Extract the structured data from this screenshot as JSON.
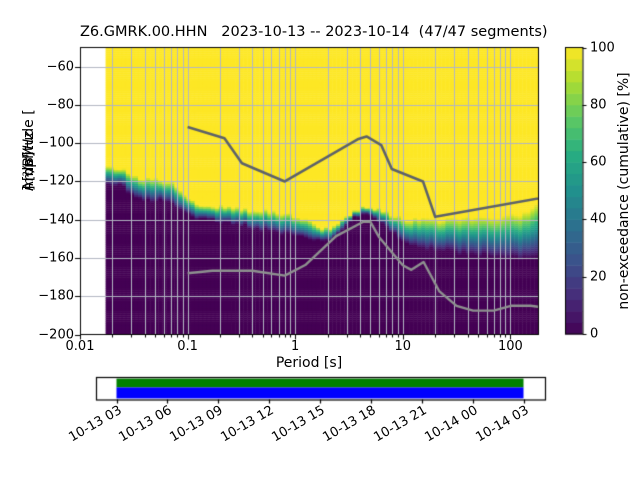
{
  "title": "Z6.GMRK.00.HHN   2023-10-13 -- 2023-10-14  (47/47 segments)",
  "axes": {
    "xlabel": "Period [s]",
    "ylabel_prefix": "Amplitude [",
    "ylabel_math": "m²/s⁴/Hz",
    "ylabel_suffix": "] [dB]",
    "x_ticks": [
      {
        "label": "0.01",
        "value": 0.01
      },
      {
        "label": "0.1",
        "value": 0.1
      },
      {
        "label": "1",
        "value": 1
      },
      {
        "label": "10",
        "value": 10
      },
      {
        "label": "100",
        "value": 100
      }
    ],
    "y_ticks": [
      {
        "label": "−60",
        "value": -60
      },
      {
        "label": "−80",
        "value": -80
      },
      {
        "label": "−100",
        "value": -100
      },
      {
        "label": "−120",
        "value": -120
      },
      {
        "label": "−140",
        "value": -140
      },
      {
        "label": "−160",
        "value": -160
      },
      {
        "label": "−180",
        "value": -180
      },
      {
        "label": "−200",
        "value": -200
      }
    ]
  },
  "colorbar": {
    "label": "non-exceedance (cumulative) [%]",
    "ticks": [
      0,
      20,
      40,
      60,
      80,
      100
    ],
    "steps": 25
  },
  "timeline": {
    "labels": [
      "10-13 03",
      "10-13 06",
      "10-13 09",
      "10-13 12",
      "10-13 15",
      "10-13 18",
      "10-13 21",
      "10-14 00",
      "10-14 03"
    ],
    "green": "#008000",
    "blue": "#0000ff"
  },
  "chart_data": {
    "type": "heatmap",
    "title": "Z6.GMRK.00.HHN   2023-10-13 -- 2023-10-14  (47/47 segments)",
    "xlabel": "Period [s]",
    "ylabel": "Amplitude [m²/s⁴/Hz] [dB]",
    "x_scale": "log",
    "xlim": [
      0.01,
      181
    ],
    "ylim": [
      -200,
      -50
    ],
    "grid": true,
    "colormap": "viridis",
    "colorbar_label": "non-exceedance (cumulative) [%]",
    "colorbar_range": [
      0,
      100
    ],
    "data_period_range": [
      0.0173,
      181
    ],
    "cumulative_band": {
      "comment": "per log10(period): amplitude where non-exceedance reaches ~100% (top) and ~0% (bot)",
      "samples": [
        [
          -1.77,
          -112.5,
          -120.5
        ],
        [
          -1.62,
          -113.5,
          -122.0
        ],
        [
          -1.51,
          -116.5,
          -127.5
        ],
        [
          -1.4,
          -118.5,
          -129.5
        ],
        [
          -1.26,
          -119.0,
          -130.0
        ],
        [
          -1.15,
          -119.5,
          -130.5
        ],
        [
          -1.07,
          -124.0,
          -134.5
        ],
        [
          -0.98,
          -129.0,
          -137.0
        ],
        [
          -0.89,
          -131.5,
          -139.5
        ],
        [
          -0.7,
          -133.0,
          -141.0
        ],
        [
          -0.52,
          -134.0,
          -142.5
        ],
        [
          -0.3,
          -135.0,
          -145.0
        ],
        [
          -0.1,
          -136.5,
          -147.5
        ],
        [
          0.08,
          -138.5,
          -149.5
        ],
        [
          0.23,
          -144.0,
          -151.5
        ],
        [
          0.36,
          -143.5,
          -149.5
        ],
        [
          0.48,
          -138.5,
          -143.0
        ],
        [
          0.57,
          -134.5,
          -138.5
        ],
        [
          0.66,
          -132.5,
          -136.0
        ],
        [
          0.78,
          -134.5,
          -140.5
        ],
        [
          0.88,
          -137.0,
          -146.0
        ],
        [
          1.0,
          -139.5,
          -151.0
        ],
        [
          1.18,
          -140.0,
          -154.5
        ],
        [
          1.45,
          -139.5,
          -157.0
        ],
        [
          1.8,
          -139.0,
          -159.0
        ],
        [
          2.08,
          -137.5,
          -160.0
        ],
        [
          2.2,
          -134.5,
          -160.0
        ],
        [
          2.26,
          -131.5,
          -160.0
        ]
      ]
    },
    "noise_models": {
      "nhnm": [
        [
          0.1,
          -91.5
        ],
        [
          0.22,
          -97.4
        ],
        [
          0.32,
          -110.5
        ],
        [
          0.8,
          -120.0
        ],
        [
          3.8,
          -98.0
        ],
        [
          4.6,
          -96.5
        ],
        [
          6.3,
          -101.0
        ],
        [
          7.9,
          -113.5
        ],
        [
          15.4,
          -120.0
        ],
        [
          20.0,
          -138.5
        ],
        [
          354.8,
          -126.0
        ]
      ],
      "nlnm": [
        [
          0.1,
          -168.0
        ],
        [
          0.17,
          -166.7
        ],
        [
          0.4,
          -166.7
        ],
        [
          0.8,
          -169.2
        ],
        [
          1.24,
          -163.7
        ],
        [
          2.4,
          -148.6
        ],
        [
          4.3,
          -141.1
        ],
        [
          5.0,
          -141.1
        ],
        [
          6.0,
          -149.0
        ],
        [
          10.0,
          -163.8
        ],
        [
          12.0,
          -166.2
        ],
        [
          15.6,
          -162.1
        ],
        [
          21.9,
          -177.5
        ],
        [
          31.6,
          -185.0
        ],
        [
          45.0,
          -187.5
        ],
        [
          70.0,
          -187.5
        ],
        [
          101.0,
          -185.0
        ],
        [
          154.0,
          -185.0
        ],
        [
          328.0,
          -187.5
        ]
      ],
      "nhnm_color": "#5d6269",
      "nlnm_color": "#8e918f"
    },
    "viridis_stops": [
      [
        0.0,
        68,
        1,
        84
      ],
      [
        0.13,
        71,
        44,
        122
      ],
      [
        0.25,
        59,
        81,
        139
      ],
      [
        0.38,
        44,
        113,
        142
      ],
      [
        0.5,
        33,
        144,
        141
      ],
      [
        0.63,
        39,
        173,
        129
      ],
      [
        0.75,
        92,
        200,
        99
      ],
      [
        0.88,
        170,
        220,
        50
      ],
      [
        1.0,
        253,
        231,
        37
      ]
    ],
    "grid_color": "#b2b6c2"
  }
}
